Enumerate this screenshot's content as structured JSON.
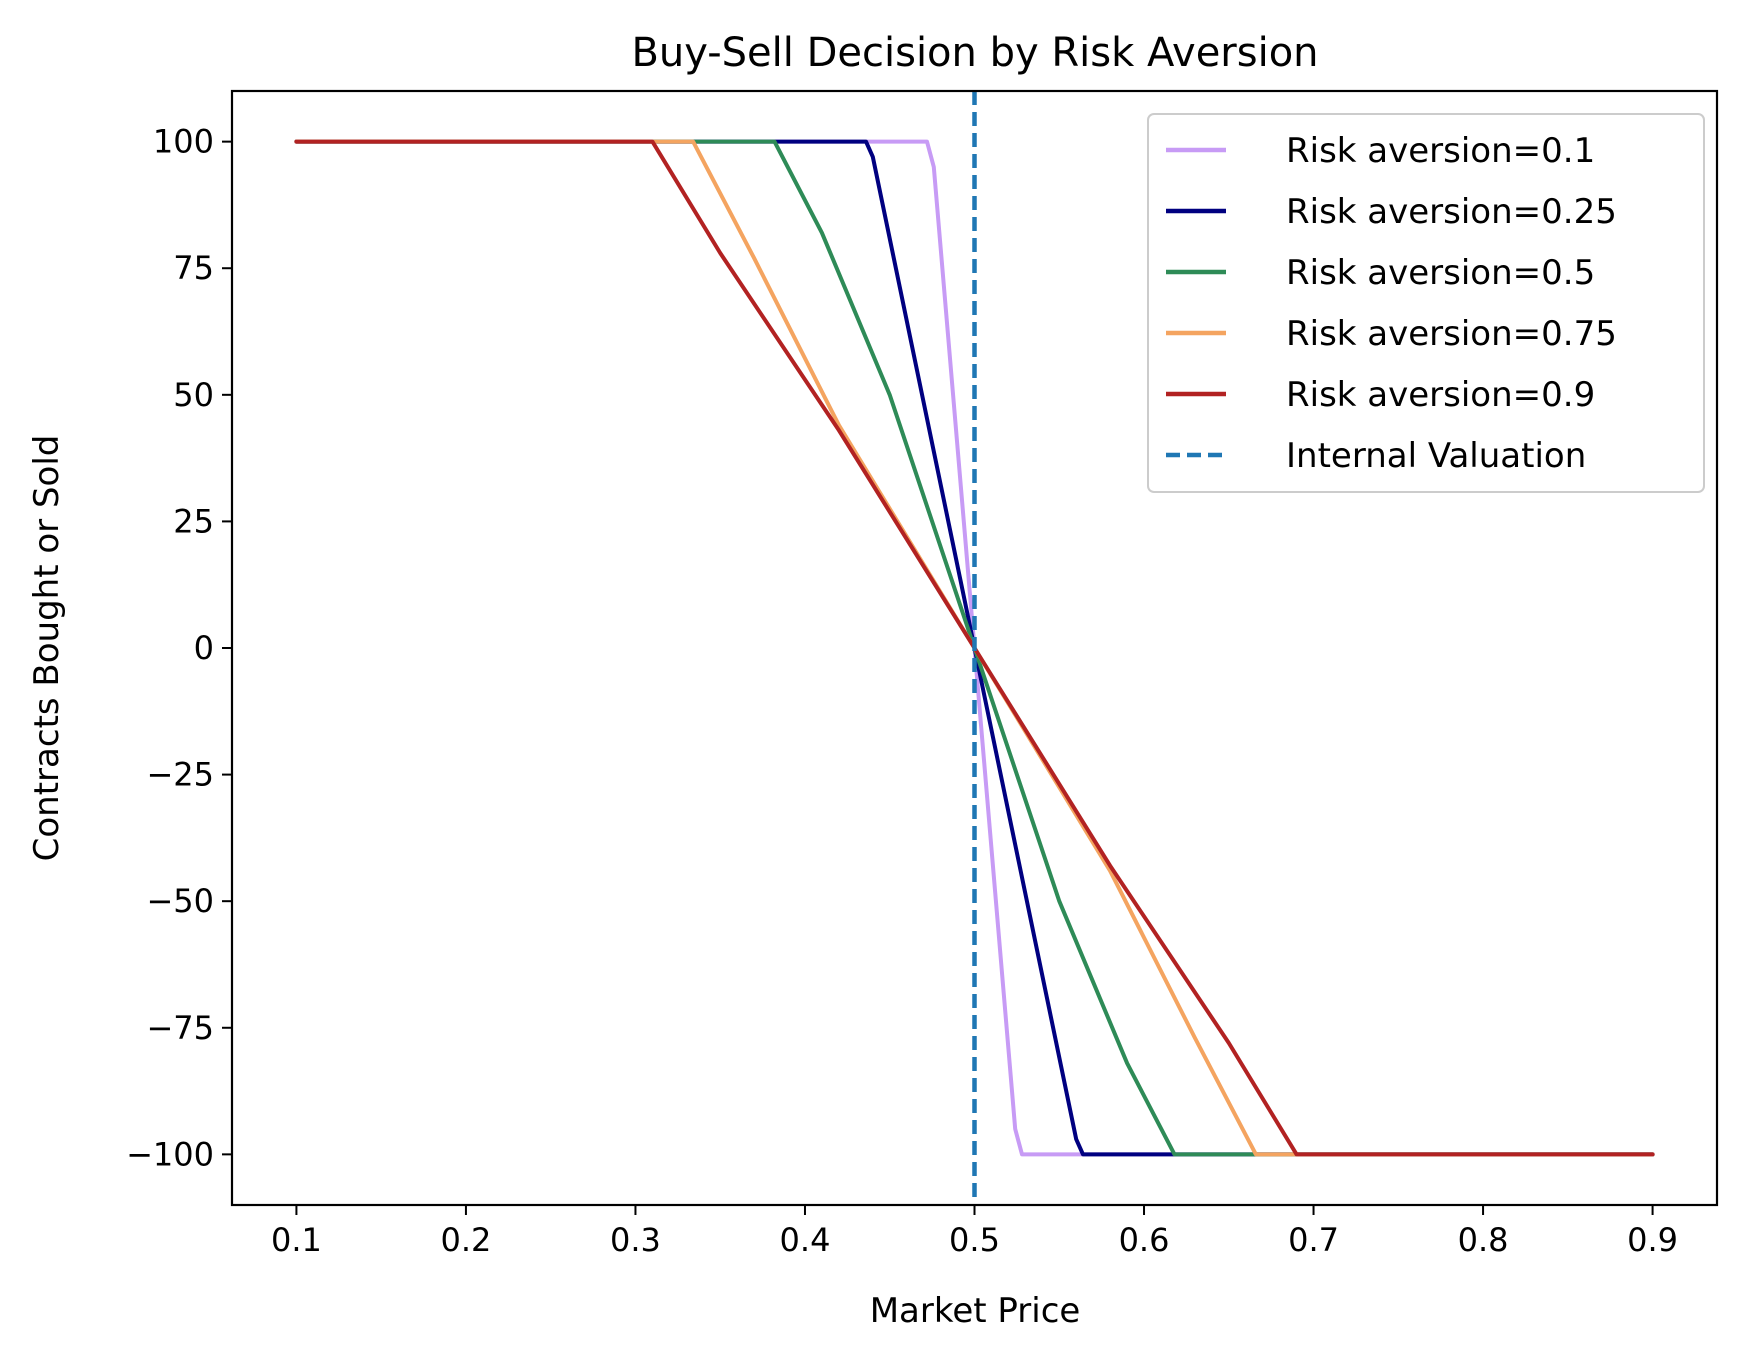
{
  "chart_data": {
    "type": "line",
    "title": "Buy-Sell Decision by Risk Aversion",
    "xlabel": "Market Price",
    "ylabel": "Contracts Bought or Sold",
    "xlim": [
      0.062,
      0.938
    ],
    "ylim": [
      -110,
      110
    ],
    "xticks": [
      0.1,
      0.2,
      0.3,
      0.4,
      0.5,
      0.6,
      0.7,
      0.8,
      0.9
    ],
    "xtick_labels": [
      "0.1",
      "0.2",
      "0.3",
      "0.4",
      "0.5",
      "0.6",
      "0.7",
      "0.8",
      "0.9"
    ],
    "yticks": [
      100,
      75,
      50,
      25,
      0,
      -25,
      -50,
      -75,
      -100
    ],
    "ytick_labels": [
      "100",
      "75",
      "50",
      "25",
      "0",
      "−25",
      "−50",
      "−75",
      "−100"
    ],
    "grid": false,
    "legend_position": "top-right",
    "series": [
      {
        "name": "Risk aversion=0.1",
        "color": "#c79bf5",
        "style": "solid",
        "x": [
          0.1,
          0.472,
          0.476,
          0.5,
          0.524,
          0.528,
          0.9
        ],
        "y": [
          100,
          100,
          95,
          0,
          -95,
          -100,
          -100
        ]
      },
      {
        "name": "Risk aversion=0.25",
        "color": "#000080",
        "style": "solid",
        "x": [
          0.1,
          0.436,
          0.44,
          0.5,
          0.56,
          0.564,
          0.9
        ],
        "y": [
          100,
          100,
          97,
          0,
          -97,
          -100,
          -100
        ]
      },
      {
        "name": "Risk aversion=0.5",
        "color": "#2e8b57",
        "style": "solid",
        "x": [
          0.1,
          0.382,
          0.41,
          0.45,
          0.5,
          0.55,
          0.59,
          0.618,
          0.9
        ],
        "y": [
          100,
          100,
          82,
          50,
          0,
          -50,
          -82,
          -100,
          -100
        ]
      },
      {
        "name": "Risk aversion=0.75",
        "color": "#f4a460",
        "style": "solid",
        "x": [
          0.1,
          0.334,
          0.37,
          0.42,
          0.5,
          0.58,
          0.63,
          0.666,
          0.9
        ],
        "y": [
          100,
          100,
          77,
          44,
          0,
          -44,
          -77,
          -100,
          -100
        ]
      },
      {
        "name": "Risk aversion=0.9",
        "color": "#b22222",
        "style": "solid",
        "x": [
          0.1,
          0.31,
          0.35,
          0.42,
          0.5,
          0.58,
          0.65,
          0.69,
          0.9
        ],
        "y": [
          100,
          100,
          78,
          43,
          0,
          -43,
          -78,
          -100,
          -100
        ]
      }
    ],
    "vline": {
      "name": "Internal Valuation",
      "x": 0.5,
      "color": "#1f77b4",
      "style": "dashed"
    }
  }
}
